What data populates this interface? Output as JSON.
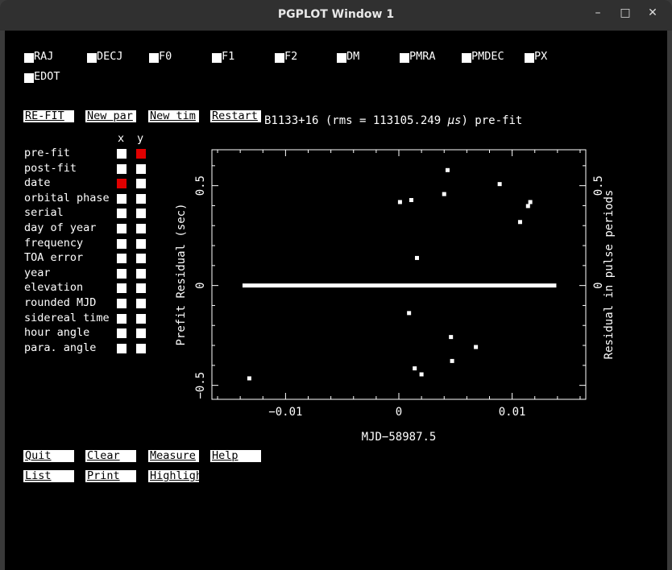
{
  "window": {
    "title": "PGPLOT Window 1",
    "minimize": "–",
    "maximize": "□",
    "close": "✕"
  },
  "params": [
    "RAJ",
    "DECJ",
    "F0",
    "F1",
    "F2",
    "DM",
    "PMRA",
    "PMDEC",
    "PX",
    "EDOT"
  ],
  "actions_top": [
    "RE-FIT",
    "New par",
    "New tim",
    "Restart"
  ],
  "plot_heading": {
    "prefix": "B1133+16 (rms = 113105.249 ",
    "unit": "μs",
    "suffix": ") pre-fit"
  },
  "axis_headers": {
    "x": "x",
    "y": "y"
  },
  "axis_options": [
    {
      "label": "pre-fit",
      "x": false,
      "y": true
    },
    {
      "label": "post-fit",
      "x": false,
      "y": false
    },
    {
      "label": "date",
      "x": true,
      "y": false
    },
    {
      "label": "orbital phase",
      "x": false,
      "y": false
    },
    {
      "label": "serial",
      "x": false,
      "y": false
    },
    {
      "label": "day of year",
      "x": false,
      "y": false
    },
    {
      "label": "frequency",
      "x": false,
      "y": false
    },
    {
      "label": "TOA error",
      "x": false,
      "y": false
    },
    {
      "label": "year",
      "x": false,
      "y": false
    },
    {
      "label": "elevation",
      "x": false,
      "y": false
    },
    {
      "label": "rounded MJD",
      "x": false,
      "y": false
    },
    {
      "label": "sidereal time",
      "x": false,
      "y": false
    },
    {
      "label": "hour angle",
      "x": false,
      "y": false
    },
    {
      "label": "para. angle",
      "x": false,
      "y": false
    }
  ],
  "actions_bottom_row1": [
    "Quit",
    "Clear",
    "Measure",
    "Help"
  ],
  "actions_bottom_row2": [
    "List",
    "Print",
    "Highlight"
  ],
  "colors": {
    "background": "#000000",
    "foreground": "#ffffff",
    "selected": "#e00000"
  },
  "chart_data": {
    "type": "scatter",
    "xlabel": "MJD−58987.5",
    "ylabel": "Prefit Residual (sec)",
    "ylabel_right": "Residual in pulse periods",
    "xlim": [
      -0.0165,
      0.0165
    ],
    "ylim": [
      -0.57,
      0.68
    ],
    "x_ticks": [
      -0.01,
      0,
      0.01
    ],
    "x_tick_labels": [
      "−0.01",
      "0",
      "0.01"
    ],
    "y_ticks": [
      -0.5,
      0,
      0.5
    ],
    "y_tick_labels": [
      "−0.5",
      "0",
      "0.5"
    ],
    "y2_tick_labels": [
      "0",
      "0.5"
    ],
    "band": {
      "x_start": -0.0138,
      "x_end": 0.0139,
      "y": 0
    },
    "points": [
      {
        "x": -0.0132,
        "y": -0.465
      },
      {
        "x": 0.0001,
        "y": 0.418
      },
      {
        "x": 0.0011,
        "y": 0.428
      },
      {
        "x": 0.0009,
        "y": -0.138
      },
      {
        "x": 0.0016,
        "y": 0.138
      },
      {
        "x": 0.0014,
        "y": -0.415
      },
      {
        "x": 0.002,
        "y": -0.445
      },
      {
        "x": 0.004,
        "y": 0.458
      },
      {
        "x": 0.0043,
        "y": 0.578
      },
      {
        "x": 0.0046,
        "y": -0.258
      },
      {
        "x": 0.0047,
        "y": -0.378
      },
      {
        "x": 0.0068,
        "y": -0.308
      },
      {
        "x": 0.0089,
        "y": 0.508
      },
      {
        "x": 0.0107,
        "y": 0.318
      },
      {
        "x": 0.0114,
        "y": 0.398
      },
      {
        "x": 0.0116,
        "y": 0.418
      }
    ]
  }
}
